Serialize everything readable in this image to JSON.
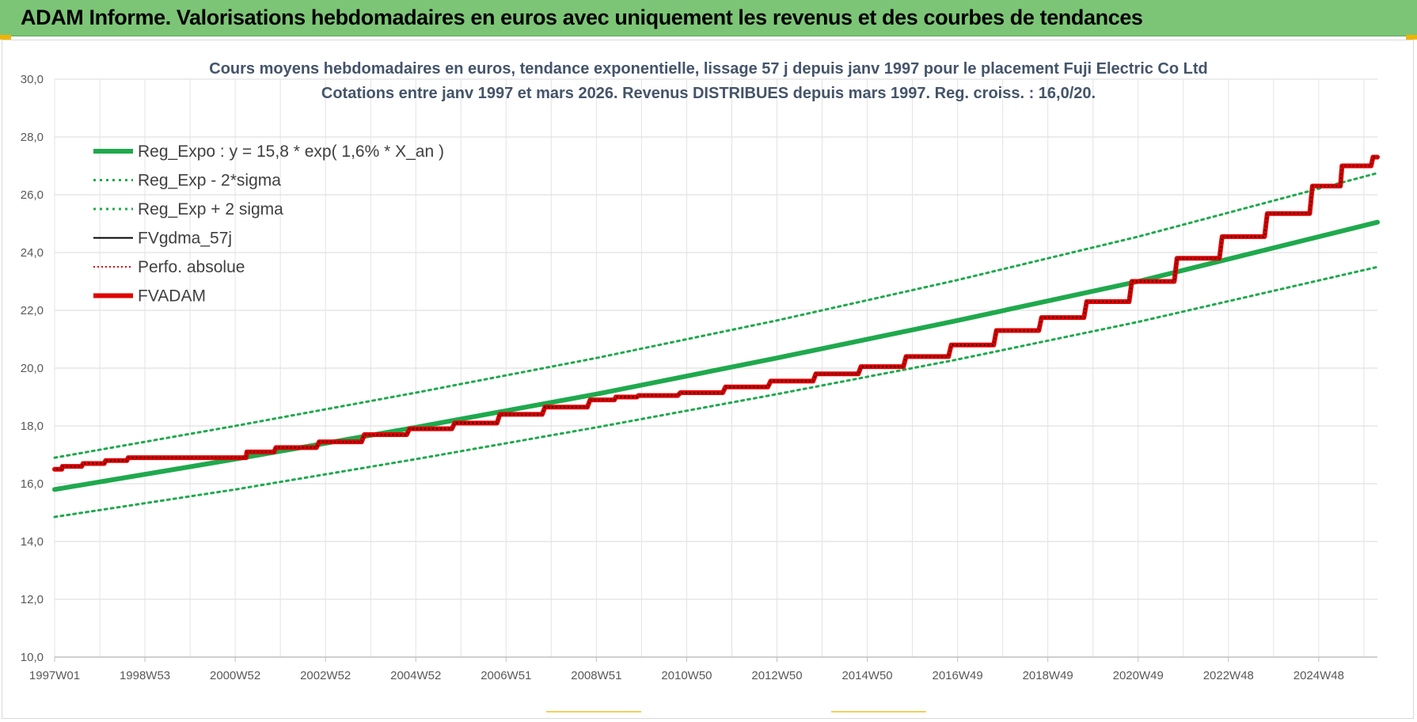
{
  "banner": {
    "title": "ADAM Informe. Valorisations hebdomadaires en euros avec uniquement les revenus et des courbes de tendances"
  },
  "colors": {
    "banner_bg": "#7cc576",
    "reg_line": "#1fa94d",
    "band_line": "#1fa94d",
    "fvgdma": "#000000",
    "perfo": "#e00000",
    "fvadam": "#e00000",
    "grid": "#d9d9d9"
  },
  "chart_data": {
    "type": "line",
    "title": "Cours moyens hebdomadaires en euros, tendance exponentielle, lissage 57 j depuis janv 1997 pour le placement Fuji Electric Co Ltd",
    "subtitle": "Cotations entre janv 1997 et mars 2026. Revenus DISTRIBUES depuis mars 1997. Reg. croiss. : 16,0/20.",
    "xlabel": "",
    "ylabel": "",
    "ylim": [
      10,
      30
    ],
    "y_ticks": [
      "10,0",
      "12,0",
      "14,0",
      "16,0",
      "18,0",
      "20,0",
      "22,0",
      "24,0",
      "26,0",
      "28,0",
      "30,0"
    ],
    "x_range_years": [
      1997.0,
      2026.3
    ],
    "x_ticks": [
      {
        "label": "1997W01",
        "year": 1997.0
      },
      {
        "label": "1998W53",
        "year": 1999.0
      },
      {
        "label": "2000W52",
        "year": 2001.0
      },
      {
        "label": "2002W52",
        "year": 2003.0
      },
      {
        "label": "2004W52",
        "year": 2005.0
      },
      {
        "label": "2006W51",
        "year": 2007.0
      },
      {
        "label": "2008W51",
        "year": 2009.0
      },
      {
        "label": "2010W50",
        "year": 2011.0
      },
      {
        "label": "2012W50",
        "year": 2013.0
      },
      {
        "label": "2014W50",
        "year": 2015.0
      },
      {
        "label": "2016W49",
        "year": 2017.0
      },
      {
        "label": "2018W49",
        "year": 2019.0
      },
      {
        "label": "2020W49",
        "year": 2021.0
      },
      {
        "label": "2022W48",
        "year": 2023.0
      },
      {
        "label": "2024W48",
        "year": 2025.0
      }
    ],
    "grid": true,
    "legend_position": "top-left",
    "series": [
      {
        "name": "Reg_Expo : y = 15,8 * exp( 1,6% *  X_an )",
        "style": "solid-thick",
        "color": "#1fa94d",
        "points": [
          [
            1997.0,
            15.8
          ],
          [
            2001.0,
            16.85
          ],
          [
            2005.0,
            17.95
          ],
          [
            2009.0,
            19.1
          ],
          [
            2013.0,
            20.35
          ],
          [
            2017.0,
            21.65
          ],
          [
            2021.0,
            23.0
          ],
          [
            2026.3,
            25.05
          ]
        ]
      },
      {
        "name": "Reg_Exp - 2*sigma",
        "style": "dotted",
        "color": "#1fa94d",
        "points": [
          [
            1997.0,
            14.85
          ],
          [
            2001.0,
            15.8
          ],
          [
            2005.0,
            16.85
          ],
          [
            2009.0,
            17.95
          ],
          [
            2013.0,
            19.1
          ],
          [
            2017.0,
            20.3
          ],
          [
            2021.0,
            21.6
          ],
          [
            2026.3,
            23.5
          ]
        ]
      },
      {
        "name": "Reg_Exp + 2 sigma",
        "style": "dotted",
        "color": "#1fa94d",
        "points": [
          [
            1997.0,
            16.9
          ],
          [
            2001.0,
            18.0
          ],
          [
            2005.0,
            19.15
          ],
          [
            2009.0,
            20.35
          ],
          [
            2013.0,
            21.65
          ],
          [
            2017.0,
            23.05
          ],
          [
            2021.0,
            24.55
          ],
          [
            2026.3,
            26.75
          ]
        ]
      },
      {
        "name": "FVgdma_57j",
        "style": "solid-thin",
        "color": "#000000",
        "follows": "FVADAM"
      },
      {
        "name": "Perfo. absolue",
        "style": "dotted-thin",
        "color": "#e00000",
        "follows": "FVADAM"
      },
      {
        "name": "FVADAM",
        "style": "solid-thick",
        "color": "#e00000",
        "points": [
          [
            1997.0,
            16.5
          ],
          [
            1997.2,
            16.6
          ],
          [
            1997.7,
            16.7
          ],
          [
            1998.2,
            16.8
          ],
          [
            1998.7,
            16.9
          ],
          [
            2000.0,
            16.9
          ],
          [
            2001.0,
            16.9
          ],
          [
            2001.3,
            17.1
          ],
          [
            2002.0,
            17.25
          ],
          [
            2003.0,
            17.45
          ],
          [
            2004.0,
            17.7
          ],
          [
            2005.0,
            17.9
          ],
          [
            2006.0,
            18.1
          ],
          [
            2007.0,
            18.4
          ],
          [
            2008.0,
            18.65
          ],
          [
            2009.0,
            18.9
          ],
          [
            2009.5,
            19.0
          ],
          [
            2010.0,
            19.05
          ],
          [
            2011.0,
            19.15
          ],
          [
            2012.0,
            19.35
          ],
          [
            2013.0,
            19.55
          ],
          [
            2014.0,
            19.8
          ],
          [
            2015.0,
            20.05
          ],
          [
            2016.0,
            20.4
          ],
          [
            2017.0,
            20.8
          ],
          [
            2018.0,
            21.3
          ],
          [
            2019.0,
            21.75
          ],
          [
            2020.0,
            22.3
          ],
          [
            2021.0,
            23.0
          ],
          [
            2022.0,
            23.8
          ],
          [
            2023.0,
            24.55
          ],
          [
            2024.0,
            25.35
          ],
          [
            2025.0,
            26.3
          ],
          [
            2025.6,
            27.0
          ],
          [
            2026.3,
            27.3
          ]
        ]
      }
    ]
  }
}
